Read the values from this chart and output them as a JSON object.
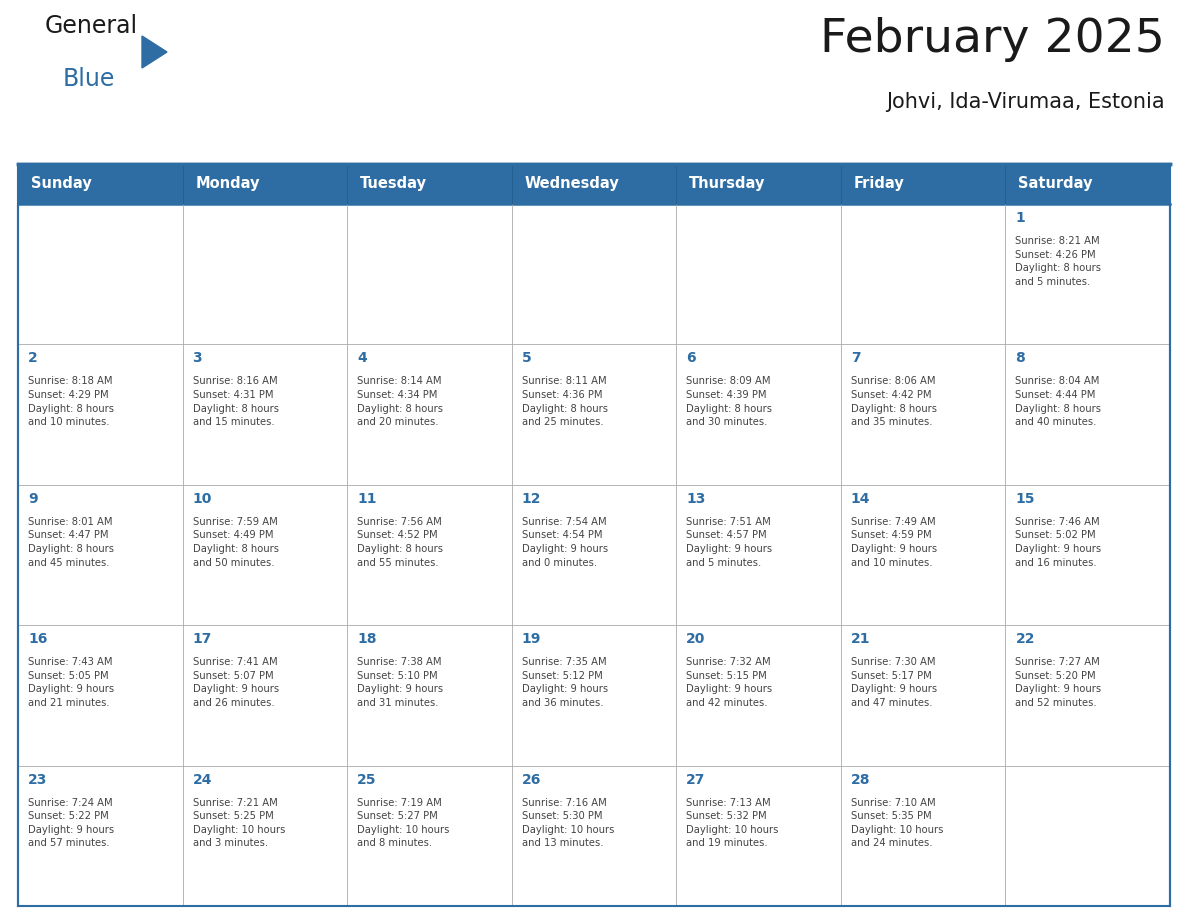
{
  "title": "February 2025",
  "subtitle": "Johvi, Ida-Virumaa, Estonia",
  "days_of_week": [
    "Sunday",
    "Monday",
    "Tuesday",
    "Wednesday",
    "Thursday",
    "Friday",
    "Saturday"
  ],
  "header_bg": "#2E6DA4",
  "header_text": "#FFFFFF",
  "cell_bg": "#FFFFFF",
  "border_color": "#2E6DA4",
  "grid_line_color": "#AAAAAA",
  "day_number_color": "#2E6DA4",
  "cell_text_color": "#444444",
  "logo_general_color": "#1a1a1a",
  "logo_blue_color": "#2E6DA4",
  "calendar_data": [
    [
      {
        "day": null,
        "info": ""
      },
      {
        "day": null,
        "info": ""
      },
      {
        "day": null,
        "info": ""
      },
      {
        "day": null,
        "info": ""
      },
      {
        "day": null,
        "info": ""
      },
      {
        "day": null,
        "info": ""
      },
      {
        "day": 1,
        "info": "Sunrise: 8:21 AM\nSunset: 4:26 PM\nDaylight: 8 hours\nand 5 minutes."
      }
    ],
    [
      {
        "day": 2,
        "info": "Sunrise: 8:18 AM\nSunset: 4:29 PM\nDaylight: 8 hours\nand 10 minutes."
      },
      {
        "day": 3,
        "info": "Sunrise: 8:16 AM\nSunset: 4:31 PM\nDaylight: 8 hours\nand 15 minutes."
      },
      {
        "day": 4,
        "info": "Sunrise: 8:14 AM\nSunset: 4:34 PM\nDaylight: 8 hours\nand 20 minutes."
      },
      {
        "day": 5,
        "info": "Sunrise: 8:11 AM\nSunset: 4:36 PM\nDaylight: 8 hours\nand 25 minutes."
      },
      {
        "day": 6,
        "info": "Sunrise: 8:09 AM\nSunset: 4:39 PM\nDaylight: 8 hours\nand 30 minutes."
      },
      {
        "day": 7,
        "info": "Sunrise: 8:06 AM\nSunset: 4:42 PM\nDaylight: 8 hours\nand 35 minutes."
      },
      {
        "day": 8,
        "info": "Sunrise: 8:04 AM\nSunset: 4:44 PM\nDaylight: 8 hours\nand 40 minutes."
      }
    ],
    [
      {
        "day": 9,
        "info": "Sunrise: 8:01 AM\nSunset: 4:47 PM\nDaylight: 8 hours\nand 45 minutes."
      },
      {
        "day": 10,
        "info": "Sunrise: 7:59 AM\nSunset: 4:49 PM\nDaylight: 8 hours\nand 50 minutes."
      },
      {
        "day": 11,
        "info": "Sunrise: 7:56 AM\nSunset: 4:52 PM\nDaylight: 8 hours\nand 55 minutes."
      },
      {
        "day": 12,
        "info": "Sunrise: 7:54 AM\nSunset: 4:54 PM\nDaylight: 9 hours\nand 0 minutes."
      },
      {
        "day": 13,
        "info": "Sunrise: 7:51 AM\nSunset: 4:57 PM\nDaylight: 9 hours\nand 5 minutes."
      },
      {
        "day": 14,
        "info": "Sunrise: 7:49 AM\nSunset: 4:59 PM\nDaylight: 9 hours\nand 10 minutes."
      },
      {
        "day": 15,
        "info": "Sunrise: 7:46 AM\nSunset: 5:02 PM\nDaylight: 9 hours\nand 16 minutes."
      }
    ],
    [
      {
        "day": 16,
        "info": "Sunrise: 7:43 AM\nSunset: 5:05 PM\nDaylight: 9 hours\nand 21 minutes."
      },
      {
        "day": 17,
        "info": "Sunrise: 7:41 AM\nSunset: 5:07 PM\nDaylight: 9 hours\nand 26 minutes."
      },
      {
        "day": 18,
        "info": "Sunrise: 7:38 AM\nSunset: 5:10 PM\nDaylight: 9 hours\nand 31 minutes."
      },
      {
        "day": 19,
        "info": "Sunrise: 7:35 AM\nSunset: 5:12 PM\nDaylight: 9 hours\nand 36 minutes."
      },
      {
        "day": 20,
        "info": "Sunrise: 7:32 AM\nSunset: 5:15 PM\nDaylight: 9 hours\nand 42 minutes."
      },
      {
        "day": 21,
        "info": "Sunrise: 7:30 AM\nSunset: 5:17 PM\nDaylight: 9 hours\nand 47 minutes."
      },
      {
        "day": 22,
        "info": "Sunrise: 7:27 AM\nSunset: 5:20 PM\nDaylight: 9 hours\nand 52 minutes."
      }
    ],
    [
      {
        "day": 23,
        "info": "Sunrise: 7:24 AM\nSunset: 5:22 PM\nDaylight: 9 hours\nand 57 minutes."
      },
      {
        "day": 24,
        "info": "Sunrise: 7:21 AM\nSunset: 5:25 PM\nDaylight: 10 hours\nand 3 minutes."
      },
      {
        "day": 25,
        "info": "Sunrise: 7:19 AM\nSunset: 5:27 PM\nDaylight: 10 hours\nand 8 minutes."
      },
      {
        "day": 26,
        "info": "Sunrise: 7:16 AM\nSunset: 5:30 PM\nDaylight: 10 hours\nand 13 minutes."
      },
      {
        "day": 27,
        "info": "Sunrise: 7:13 AM\nSunset: 5:32 PM\nDaylight: 10 hours\nand 19 minutes."
      },
      {
        "day": 28,
        "info": "Sunrise: 7:10 AM\nSunset: 5:35 PM\nDaylight: 10 hours\nand 24 minutes."
      },
      {
        "day": null,
        "info": ""
      }
    ]
  ]
}
